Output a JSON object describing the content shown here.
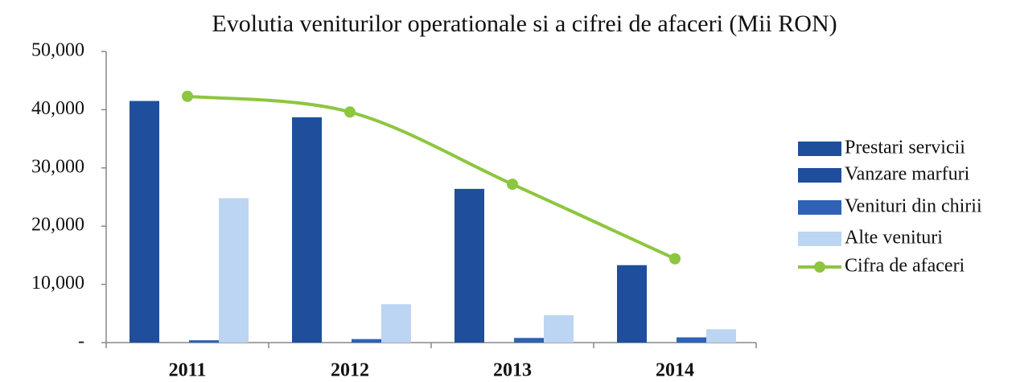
{
  "chart_data": {
    "type": "bar_line",
    "title": "Evolutia veniturilor operationale si a cifrei de afaceri (Mii RON)",
    "categories": [
      "2011",
      "2012",
      "2013",
      "2014"
    ],
    "series": [
      {
        "name": "Prestari servicii",
        "color": "#1f4e9c",
        "type": "bar",
        "values": [
          41500,
          38700,
          26400,
          13300
        ]
      },
      {
        "name": "Vanzare marfuri",
        "color": "#1f4e9c",
        "type": "bar",
        "values": [
          0,
          0,
          0,
          0
        ]
      },
      {
        "name": "Venituri din chirii",
        "color": "#2e62b5",
        "type": "bar",
        "values": [
          400,
          600,
          800,
          900
        ]
      },
      {
        "name": "Alte venituri",
        "color": "#bcd5f2",
        "type": "bar",
        "values": [
          24800,
          6600,
          4700,
          2300
        ]
      },
      {
        "name": "Cifra de afaceri",
        "color": "#8dc63f",
        "type": "line",
        "values": [
          42300,
          39600,
          27200,
          14400
        ]
      }
    ],
    "ylim": [
      0,
      50000
    ],
    "yticks": [
      {
        "value": 0,
        "label": "-"
      },
      {
        "value": 10000,
        "label": "10,000"
      },
      {
        "value": 20000,
        "label": "20,000"
      },
      {
        "value": 30000,
        "label": "30,000"
      },
      {
        "value": 40000,
        "label": "40,000"
      },
      {
        "value": 50000,
        "label": "50,000"
      }
    ],
    "grid": false,
    "legend": "right"
  }
}
